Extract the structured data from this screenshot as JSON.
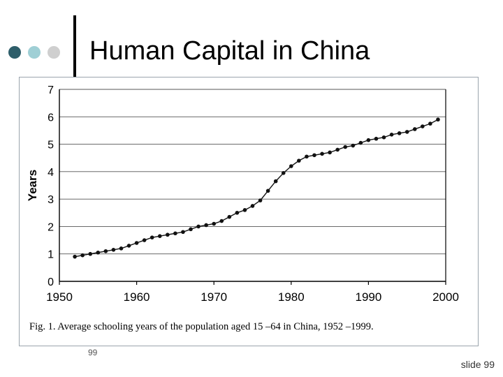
{
  "slide": {
    "title": "Human Capital in China",
    "page_marker": "99",
    "footer": "slide 99",
    "dot_colors": [
      "#2e5e6a",
      "#9fcfd5",
      "#cfcfcf"
    ]
  },
  "chart_data": {
    "type": "line",
    "ylabel": "Years",
    "xlabel": "",
    "caption": "Fig. 1.  Average schooling years of the population aged 15 –64 in China, 1952 –1999.",
    "xlim": [
      1950,
      2000
    ],
    "ylim": [
      0,
      7
    ],
    "x_ticks": [
      "1950",
      "1960",
      "1970",
      "1980",
      "1990",
      "2000"
    ],
    "y_ticks": [
      "0",
      "1",
      "2",
      "3",
      "4",
      "5",
      "6",
      "7"
    ],
    "grid": "horizontal",
    "series": [
      {
        "x": [
          1952,
          1953,
          1954,
          1955,
          1956,
          1957,
          1958,
          1959,
          1960,
          1961,
          1962,
          1963,
          1964,
          1965,
          1966,
          1967,
          1968,
          1969,
          1970,
          1971,
          1972,
          1973,
          1974,
          1975,
          1976,
          1977,
          1978,
          1979,
          1980,
          1981,
          1982,
          1983,
          1984,
          1985,
          1986,
          1987,
          1988,
          1989,
          1990,
          1991,
          1992,
          1993,
          1994,
          1995,
          1996,
          1997,
          1998,
          1999
        ],
        "y": [
          0.9,
          0.95,
          1.0,
          1.05,
          1.1,
          1.15,
          1.2,
          1.3,
          1.4,
          1.5,
          1.6,
          1.65,
          1.7,
          1.75,
          1.8,
          1.9,
          2.0,
          2.05,
          2.1,
          2.2,
          2.35,
          2.5,
          2.6,
          2.75,
          2.95,
          3.3,
          3.65,
          3.95,
          4.2,
          4.4,
          4.55,
          4.6,
          4.65,
          4.7,
          4.8,
          4.9,
          4.95,
          5.05,
          5.15,
          5.2,
          5.25,
          5.35,
          5.4,
          5.45,
          5.55,
          5.65,
          5.75,
          5.9
        ]
      }
    ]
  }
}
